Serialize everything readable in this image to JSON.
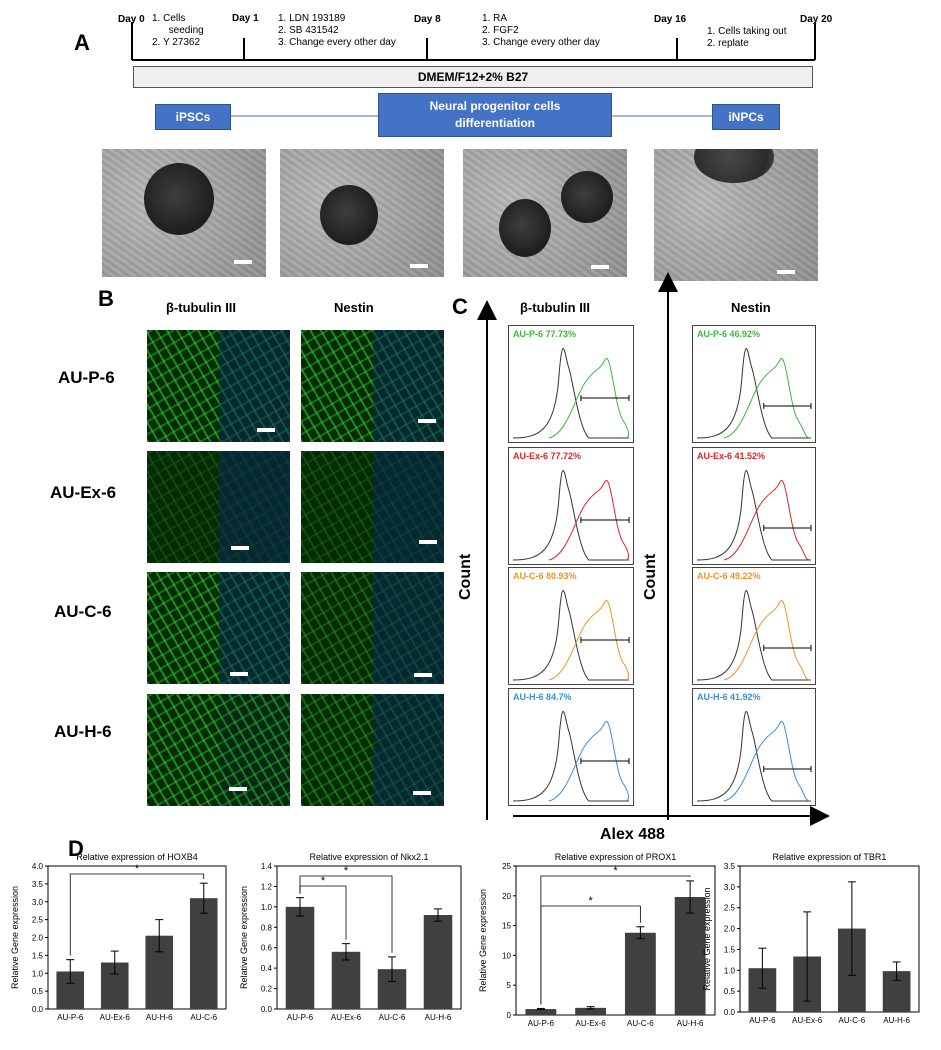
{
  "panels": {
    "a": "A",
    "b": "B",
    "c": "C",
    "d": "D"
  },
  "timeline": {
    "days": [
      "Day 0",
      "Day 1",
      "Day 8",
      "Day 16",
      "Day 20"
    ],
    "steps": [
      [
        "1.  Cells",
        "      seeding",
        "2.  Y 27362"
      ],
      [
        "1. LDN 193189",
        "2. SB 431542",
        "3. Change every other day"
      ],
      [
        "1. RA",
        "2. FGF2",
        "3. Change every other day"
      ],
      [
        "1.  Cells taking out",
        "2.  replate"
      ]
    ],
    "medium": "DMEM/F12+2% B27",
    "stages": {
      "start": "iPSCs",
      "middle_line1": "Neural progenitor cells",
      "middle_line2": "differentiation",
      "end": "iNPCs"
    }
  },
  "immuno": {
    "columns": [
      "β-tubulin  III",
      "Nestin"
    ],
    "rows": [
      "AU-P-6",
      "AU-Ex-6",
      "AU-C-6",
      "AU-H-6"
    ]
  },
  "flow": {
    "columns": [
      "β-tubulin  III",
      "Nestin"
    ],
    "y_label": "Count",
    "x_label": "Alex 488",
    "colors": {
      "AU-P-6": "#3cb83c",
      "AU-Ex-6": "#d62728",
      "AU-C-6": "#f0922a",
      "AU-H-6": "#3a8fd8"
    },
    "tubulin": [
      "AU-P-6 77.73%",
      "AU-Ex-6 77.72%",
      "AU-C-6 80.93%",
      "AU-H-6 84.7%"
    ],
    "nestin": [
      "AU-P-6 46.92%",
      "AU-Ex-6 41.52%",
      "AU-C-6 49.22%",
      "AU-H-6 41.92%"
    ]
  },
  "chart_data": [
    {
      "type": "bar",
      "title": "Relative expression of HOXB4",
      "ylabel": "Relative Gene expression",
      "categories": [
        "AU-P-6",
        "AU-Ex-6",
        "AU-H-6",
        "AU-C-6"
      ],
      "values": [
        1.05,
        1.3,
        2.05,
        3.1
      ],
      "errors": [
        0.33,
        0.32,
        0.45,
        0.42
      ],
      "ylim": [
        0,
        4.0
      ],
      "yticks": [
        "0.0",
        "0.5",
        "1.0",
        "1.5",
        "2.0",
        "2.5",
        "3.0",
        "3.5",
        "4.0"
      ],
      "significance": [
        {
          "from": 0,
          "to": 3,
          "label": "*"
        }
      ]
    },
    {
      "type": "bar",
      "title": "Relative expression of Nkx2.1",
      "ylabel": "Relative Gene expression",
      "categories": [
        "AU-P-6",
        "AU-Ex-6",
        "AU-C-6",
        "AU-H-6"
      ],
      "values": [
        1.0,
        0.56,
        0.39,
        0.92
      ],
      "errors": [
        0.09,
        0.08,
        0.12,
        0.06
      ],
      "ylim": [
        0,
        1.4
      ],
      "yticks": [
        "0.0",
        "0.2",
        "0.4",
        "0.6",
        "0.8",
        "1.0",
        "1.2",
        "1.4"
      ],
      "significance": [
        {
          "from": 0,
          "to": 1,
          "label": "*"
        },
        {
          "from": 0,
          "to": 2,
          "label": "*"
        }
      ]
    },
    {
      "type": "bar",
      "title": "Relative expression of PROX1",
      "ylabel": "Relative Gene expression",
      "categories": [
        "AU-P-6",
        "AU-Ex-6",
        "AU-C-6",
        "AU-H-6"
      ],
      "values": [
        1.0,
        1.2,
        13.8,
        19.8
      ],
      "errors": [
        0.1,
        0.2,
        1.0,
        2.7
      ],
      "ylim": [
        0,
        25
      ],
      "yticks": [
        "0",
        "5",
        "10",
        "15",
        "20",
        "25"
      ],
      "significance": [
        {
          "from": 0,
          "to": 2,
          "label": "*"
        },
        {
          "from": 0,
          "to": 3,
          "label": "*"
        }
      ]
    },
    {
      "type": "bar",
      "title": "Relative expression of TBR1",
      "ylabel": "Relative Gene expression",
      "categories": [
        "AU-P-6",
        "AU-Ex-6",
        "AU-C-6",
        "AU-H-6"
      ],
      "values": [
        1.05,
        1.33,
        2.0,
        0.98
      ],
      "errors": [
        0.48,
        1.07,
        1.12,
        0.22
      ],
      "ylim": [
        0,
        3.5
      ],
      "yticks": [
        "0.0",
        "0.5",
        "1.0",
        "1.5",
        "2.0",
        "2.5",
        "3.0",
        "3.5"
      ],
      "significance": []
    }
  ]
}
